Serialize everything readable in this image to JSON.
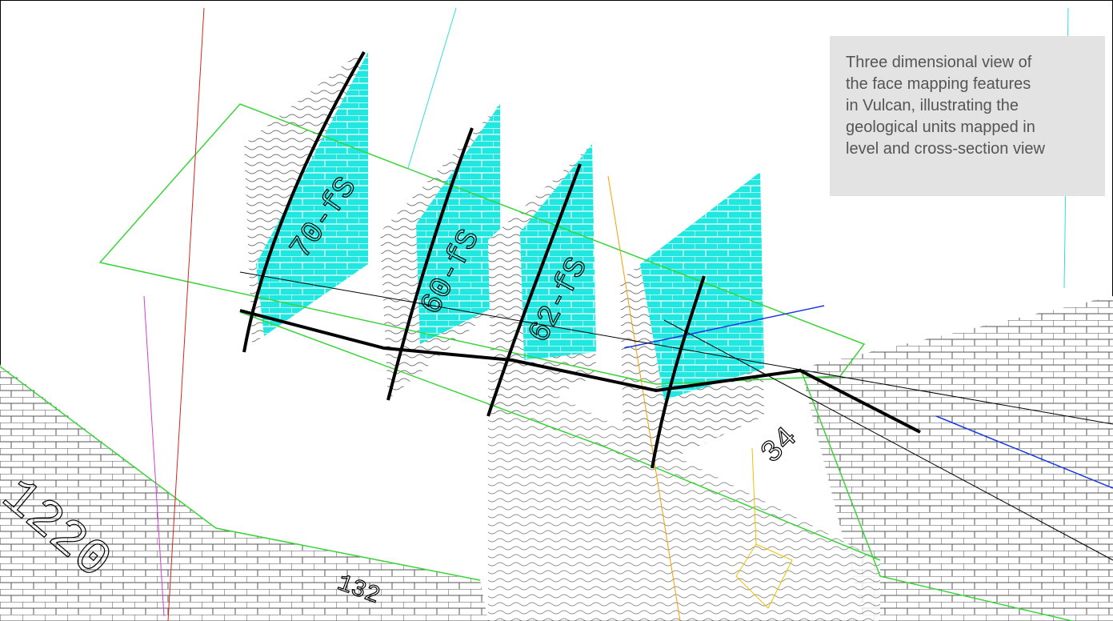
{
  "caption": {
    "lines": [
      "Three dimensional view of",
      "the face mapping features",
      "in Vulcan, illustrating the",
      "geological units mapped in",
      "level and cross-section view"
    ]
  },
  "drawing": {
    "labels": [
      "70-fS",
      "60-fS",
      "62-fS",
      "1220",
      "132",
      "34"
    ]
  }
}
